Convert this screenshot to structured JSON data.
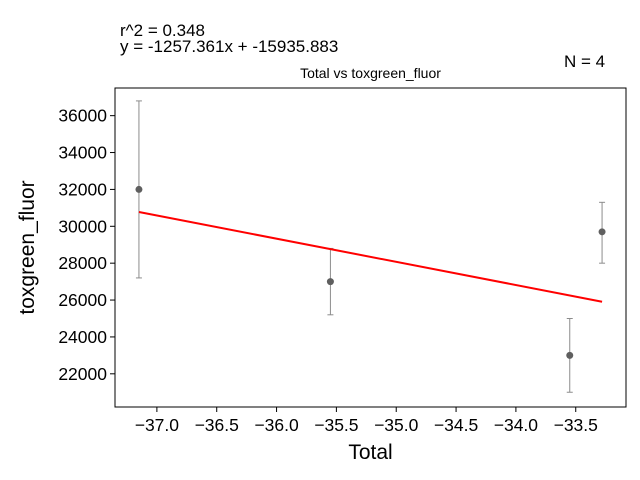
{
  "chart_data": {
    "type": "scatter",
    "title": "Total vs toxgreen_fluor",
    "xlabel": "Total",
    "ylabel": "toxgreen_fluor",
    "annotations": {
      "r2": "r^2 = 0.348",
      "equation": "y = -1257.361x + -15935.883",
      "n": "N = 4"
    },
    "xlim": [
      -37.35,
      -33.08
    ],
    "ylim": [
      20200,
      37500
    ],
    "xticks": [
      -37.0,
      -36.5,
      -36.0,
      -35.5,
      -35.0,
      -34.5,
      -34.0,
      -33.5
    ],
    "xtick_labels": [
      "−37.0",
      "−36.5",
      "−36.0",
      "−35.5",
      "−35.0",
      "−34.5",
      "−34.0",
      "−33.5"
    ],
    "yticks": [
      22000,
      24000,
      26000,
      28000,
      30000,
      32000,
      34000,
      36000
    ],
    "ytick_labels": [
      "22000",
      "24000",
      "26000",
      "28000",
      "30000",
      "32000",
      "34000",
      "36000"
    ],
    "points": [
      {
        "x": -37.15,
        "y": 32000,
        "err_low": 27200,
        "err_high": 36800
      },
      {
        "x": -35.55,
        "y": 27000,
        "err_low": 25200,
        "err_high": 28800
      },
      {
        "x": -33.55,
        "y": 23000,
        "err_low": 21000,
        "err_high": 25000
      },
      {
        "x": -33.28,
        "y": 29700,
        "err_low": 28000,
        "err_high": 31300
      }
    ],
    "fit": {
      "slope": -1257.361,
      "intercept": -15935.883,
      "x_range": [
        -37.15,
        -33.28
      ]
    },
    "grid": false,
    "colors": {
      "points": "#5f5f5f",
      "errorbars": "#8c8c8c",
      "fit": "#ff0000"
    }
  }
}
